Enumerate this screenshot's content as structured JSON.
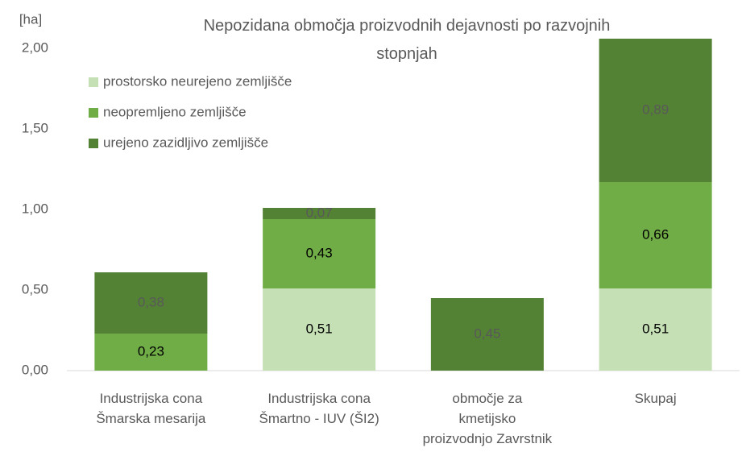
{
  "chart_data": {
    "type": "bar",
    "stacked": true,
    "title": "Nepozidana območja proizvodnih dejavnosti po razvojnih stopnjah",
    "y_label": "[ha]",
    "categories": [
      "Industrijska cona\nŠmarska mesarija",
      "Industrijska cona\nŠmartno - IUV (ŠI2)",
      "območje za\nkmetijsko\nproizvodnjo Zavrstnik",
      "Skupaj"
    ],
    "series": [
      {
        "name": "prostorsko neurejeno zemljišče",
        "color": "#c5e0b4",
        "label_color": "#000000",
        "values": [
          null,
          0.51,
          null,
          0.51
        ],
        "value_labels": [
          null,
          "0,51",
          null,
          "0,51"
        ]
      },
      {
        "name": "neopremljeno zemljišče",
        "color": "#70ad47",
        "label_color": "#000000",
        "values": [
          0.23,
          0.43,
          null,
          0.66
        ],
        "value_labels": [
          "0,23",
          "0,43",
          null,
          "0,66"
        ]
      },
      {
        "name": "urejeno zazidljivo zemljišče",
        "color": "#548235",
        "label_color": "#595959",
        "values": [
          0.38,
          0.07,
          0.45,
          0.89
        ],
        "value_labels": [
          "0,38",
          "0,07",
          "0,45",
          "0,89"
        ]
      }
    ],
    "ylim": [
      0,
      2.1
    ],
    "yticks": [
      {
        "value": 0,
        "label": "0,00"
      },
      {
        "value": 0.5,
        "label": "0,50"
      },
      {
        "value": 1,
        "label": "1,00"
      },
      {
        "value": 1.5,
        "label": "1,50"
      },
      {
        "value": 2,
        "label": "2,00"
      }
    ],
    "grid": false,
    "legend": "top-left"
  }
}
